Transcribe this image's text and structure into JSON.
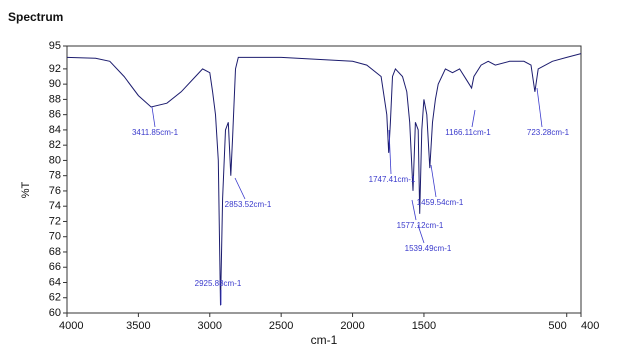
{
  "chart_data": {
    "type": "line",
    "title": "Spectrum",
    "xlabel": "cm-1",
    "ylabel": "%T",
    "x": [
      4000,
      3800,
      3700,
      3600,
      3500,
      3411,
      3300,
      3200,
      3100,
      3050,
      3000,
      2980,
      2960,
      2940,
      2925,
      2910,
      2890,
      2870,
      2853,
      2840,
      2820,
      2800,
      2500,
      2000,
      1900,
      1800,
      1760,
      1747,
      1735,
      1720,
      1700,
      1650,
      1620,
      1600,
      1577,
      1560,
      1540,
      1530,
      1515,
      1500,
      1480,
      1459,
      1440,
      1420,
      1400,
      1350,
      1300,
      1250,
      1200,
      1166,
      1150,
      1100,
      1050,
      1000,
      900,
      800,
      750,
      723,
      700,
      600,
      500,
      400
    ],
    "values": [
      93.5,
      93.4,
      93,
      91,
      88.5,
      87,
      87.5,
      89,
      91,
      92,
      91.5,
      89,
      86,
      80,
      61,
      75,
      84,
      85,
      78,
      83,
      92,
      93.5,
      93.5,
      93,
      92.5,
      91,
      86,
      81,
      85,
      91,
      92,
      91,
      89,
      85,
      76,
      85,
      84,
      73,
      84,
      88,
      86,
      79,
      85,
      88,
      90,
      92,
      91.5,
      92,
      90.5,
      89.5,
      91,
      92.5,
      93,
      92.5,
      93,
      93,
      92.5,
      89,
      92,
      93,
      93.5,
      94
    ],
    "color": "#1c1c6e",
    "xlim": [
      4000,
      400
    ],
    "xticks": [
      4000,
      3500,
      3000,
      2500,
      2000,
      1500,
      500,
      400
    ],
    "ylim": [
      60,
      95
    ],
    "yticks": [
      60,
      62,
      64,
      66,
      68,
      70,
      72,
      74,
      76,
      78,
      80,
      82,
      84,
      86,
      88,
      90,
      92,
      95
    ],
    "annotations": [
      "3411.85cm-1",
      "2853.52cm-1",
      "2925.88cm-1",
      "1747.41cm-1",
      "1459.54cm-1",
      "1577.12cm-1",
      "1539.49cm-1",
      "1166.11cm-1",
      "723.28cm-1"
    ],
    "annotation_color": "#3a3acc"
  }
}
